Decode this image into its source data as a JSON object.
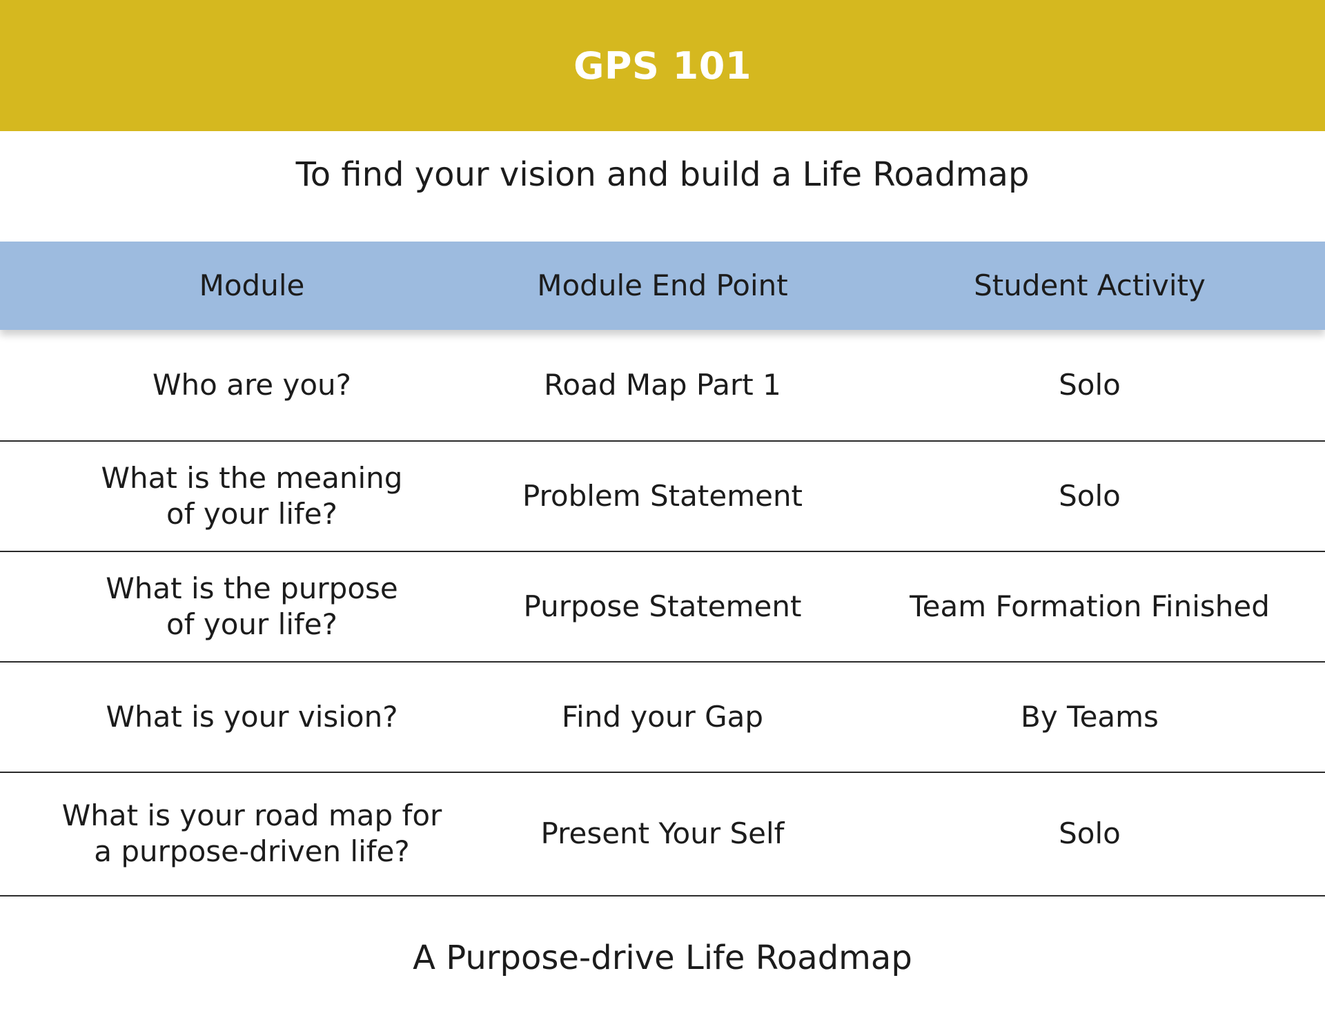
{
  "banner": {
    "title": "GPS 101"
  },
  "subtitle": "To find your vision and build a Life Roadmap",
  "table": {
    "headers": [
      "Module",
      "Module End Point",
      "Student Activity"
    ],
    "rows": [
      {
        "module_lines": [
          "Who are you?"
        ],
        "end_point": "Road Map Part 1",
        "activity": "Solo"
      },
      {
        "module_lines": [
          "What is the meaning",
          "of your life?"
        ],
        "end_point": "Problem Statement",
        "activity": "Solo"
      },
      {
        "module_lines": [
          "What is the purpose",
          "of your life?"
        ],
        "end_point": "Purpose Statement",
        "activity": "Team Formation Finished"
      },
      {
        "module_lines": [
          "What is your vision?"
        ],
        "end_point": "Find your Gap",
        "activity": "By Teams"
      },
      {
        "module_lines": [
          "What is your road map for",
          "a purpose-driven life?"
        ],
        "end_point": "Present Your Self",
        "activity": "Solo"
      }
    ]
  },
  "footer": "A Purpose-drive Life Roadmap",
  "colors": {
    "banner": "#d5b81f",
    "header_row": "#9dbbdf",
    "text": "#1c1c1c"
  }
}
